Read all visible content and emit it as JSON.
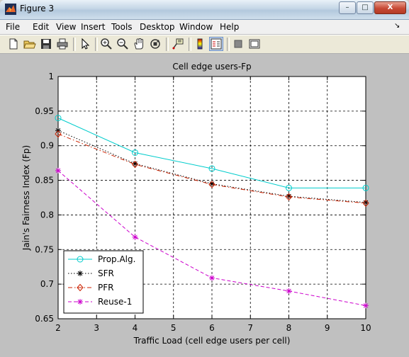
{
  "window": {
    "title": "Figure 3",
    "controls": {
      "minimize": "–",
      "maximize": "□",
      "close": "X"
    }
  },
  "menubar": {
    "items": [
      "File",
      "Edit",
      "View",
      "Insert",
      "Tools",
      "Desktop",
      "Window",
      "Help"
    ],
    "dock_arrow": "↘"
  },
  "toolbar": {
    "buttons": [
      "new-figure",
      "open-file",
      "save",
      "print",
      "edit-plot-arrow",
      "zoom-in",
      "zoom-out",
      "pan",
      "rotate-3d",
      "data-cursor",
      "colorbar",
      "legend",
      "hide-plot-tools",
      "show-plot-tools"
    ]
  },
  "chart_data": {
    "type": "line",
    "title": "Cell edge users-Fp",
    "xlabel": "Traffic Load (cell edge users per cell)",
    "ylabel": "Jain's Fairness Index (Fp)",
    "xlim": [
      2,
      10
    ],
    "ylim": [
      0.65,
      1
    ],
    "xticks": [
      "2",
      "3",
      "4",
      "5",
      "6",
      "7",
      "8",
      "9",
      "10"
    ],
    "yticks": [
      "0.65",
      "0.7",
      "0.75",
      "0.8",
      "0.85",
      "0.9",
      "0.95",
      "1"
    ],
    "grid": true,
    "legend_position": "bottom-left",
    "x": [
      2,
      4,
      6,
      8,
      10
    ],
    "series": [
      {
        "name": "Prop.Alg.",
        "values": [
          0.94,
          0.89,
          0.867,
          0.839,
          0.839
        ],
        "color": "#00cccc",
        "dash": "solid",
        "marker": "circle"
      },
      {
        "name": "SFR",
        "values": [
          0.922,
          0.874,
          0.845,
          0.827,
          0.818
        ],
        "color": "#000000",
        "dash": "dotted",
        "marker": "star"
      },
      {
        "name": "PFR",
        "values": [
          0.917,
          0.873,
          0.844,
          0.826,
          0.817
        ],
        "color": "#cc2200",
        "dash": "dashdot",
        "marker": "diamond"
      },
      {
        "name": "Reuse-1",
        "values": [
          0.864,
          0.768,
          0.709,
          0.69,
          0.669
        ],
        "color": "#cc00cc",
        "dash": "dashed",
        "marker": "star"
      }
    ]
  }
}
